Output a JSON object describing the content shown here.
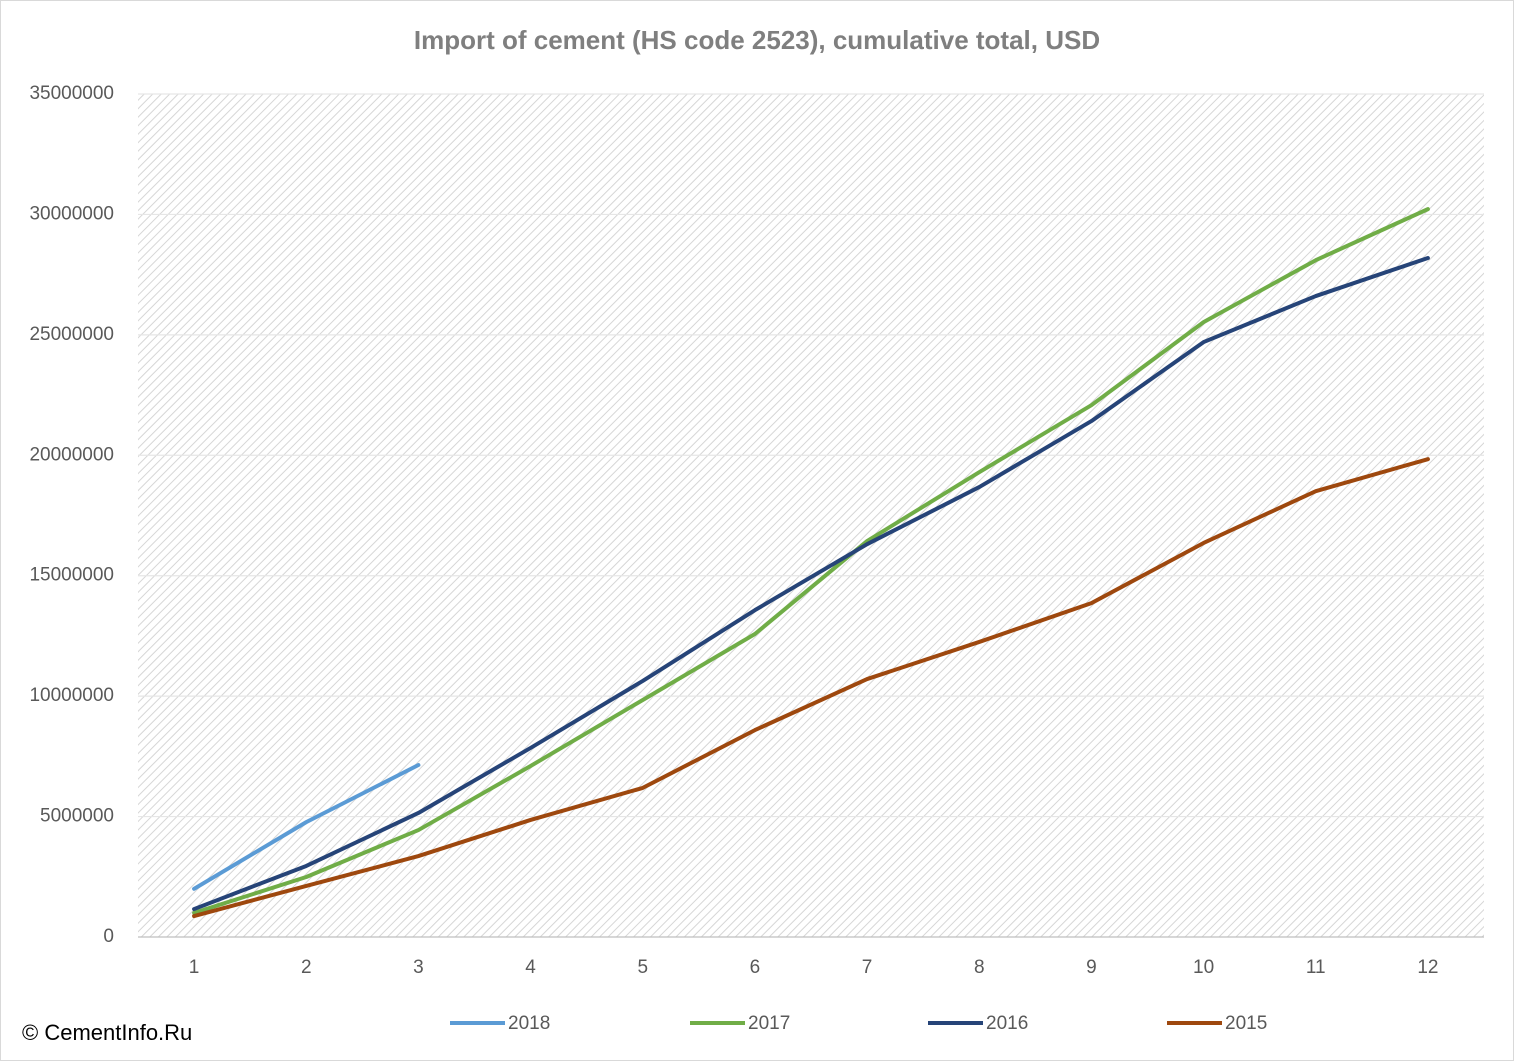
{
  "chart_data": {
    "type": "line",
    "title": "Import of cement (HS code 2523), cumulative total, USD",
    "categories": [
      1,
      2,
      3,
      4,
      5,
      6,
      7,
      8,
      9,
      10,
      11,
      12
    ],
    "series": [
      {
        "name": "2018",
        "color": "#5b9bd5",
        "values": [
          2000000,
          4770000,
          7140000,
          null,
          null,
          null,
          null,
          null,
          null,
          null,
          null,
          null
        ]
      },
      {
        "name": "2017",
        "color": "#70ad47",
        "values": [
          1000000,
          2490000,
          4440000,
          7100000,
          9840000,
          12580000,
          16440000,
          19300000,
          22080000,
          25530000,
          28100000,
          30220000
        ]
      },
      {
        "name": "2016",
        "color": "#264478",
        "values": [
          1160000,
          2950000,
          5150000,
          7850000,
          10630000,
          13570000,
          16310000,
          18680000,
          21420000,
          24700000,
          26610000,
          28190000
        ]
      },
      {
        "name": "2015",
        "color": "#9e480e",
        "values": [
          870000,
          2120000,
          3360000,
          4860000,
          6190000,
          8590000,
          10710000,
          12250000,
          13860000,
          16360000,
          18510000,
          19840000
        ]
      }
    ],
    "ylim": [
      0,
      35000000
    ],
    "yticks": [
      0,
      5000000,
      10000000,
      15000000,
      20000000,
      25000000,
      30000000,
      35000000
    ],
    "grid": true,
    "legend": "bottom",
    "annotations": [
      "© CementInfo.Ru"
    ]
  }
}
